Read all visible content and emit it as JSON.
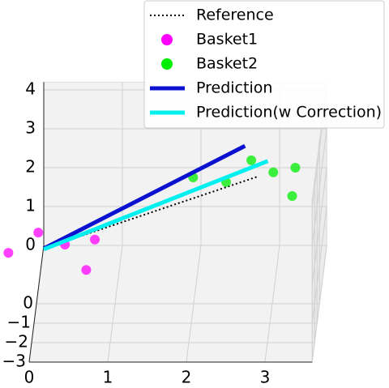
{
  "chart_data": {
    "type": "scatter3d",
    "xlim": [
      0,
      3.6
    ],
    "ylim": [
      -3,
      3
    ],
    "zlim": [
      0,
      4.2
    ],
    "xticks": [
      0,
      1,
      2,
      3
    ],
    "yticks": [
      {
        "value": -3,
        "label": "−3"
      },
      {
        "value": -2,
        "label": "−2"
      },
      {
        "value": -1,
        "label": "−1"
      },
      0
    ],
    "zticks": [
      0,
      1,
      2,
      3,
      4
    ],
    "grid": true,
    "legend": "upper right",
    "series": [
      {
        "name": "Reference",
        "mode": "line",
        "dash": "dotted",
        "color": "#000000",
        "x": [
          0,
          2.72
        ],
        "y": [
          3,
          3
        ],
        "z": [
          -0.08,
          1.77
        ]
      },
      {
        "name": "Basket1",
        "mode": "markers",
        "color": "#ff00ff",
        "x": [
          -0.45,
          -0.07,
          0.27,
          0.65,
          0.54
        ],
        "y": [
          3,
          3,
          3,
          3,
          3
        ],
        "z": [
          -0.19,
          0.33,
          0.02,
          0.15,
          -0.63
        ]
      },
      {
        "name": "Basket2",
        "mode": "markers",
        "color": "#00ee00",
        "x": [
          1.9,
          2.32,
          2.64,
          2.92,
          3.2,
          3.16
        ],
        "y": [
          3,
          3,
          3,
          3,
          3,
          3
        ],
        "z": [
          1.75,
          1.63,
          2.19,
          1.88,
          2.0,
          1.27
        ]
      },
      {
        "name": "Prediction",
        "mode": "line",
        "dash": "solid",
        "color": "#0a12d0",
        "x": [
          0,
          2.56
        ],
        "y": [
          3,
          3
        ],
        "z": [
          -0.08,
          2.56
        ]
      },
      {
        "name": "Prediction(w Correction)",
        "mode": "line",
        "dash": "solid",
        "color": "#00f0f0",
        "x": [
          0,
          2.85
        ],
        "y": [
          3,
          3
        ],
        "z": [
          -0.1,
          2.17
        ]
      }
    ]
  }
}
